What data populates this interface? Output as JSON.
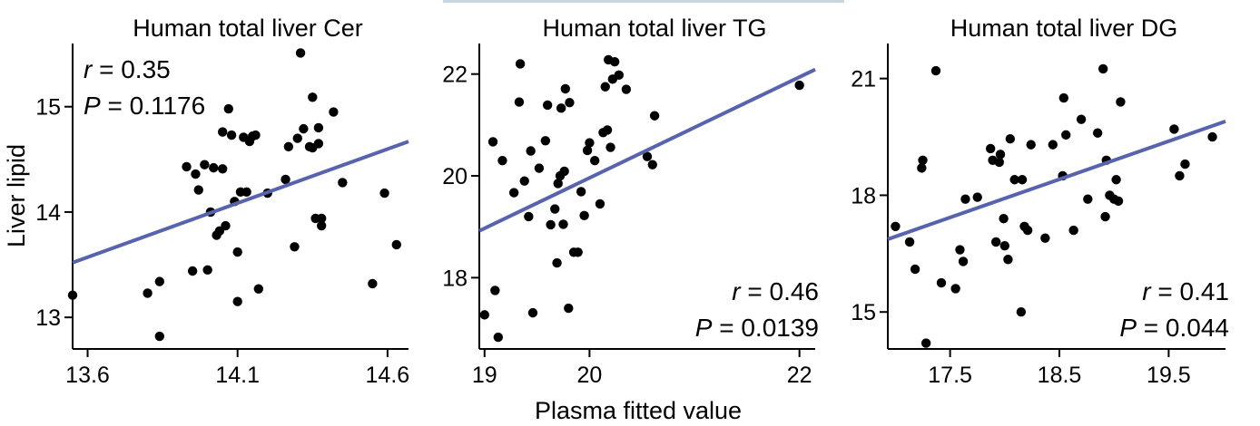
{
  "shared": {
    "ylabel": "Liver lipid",
    "xlabel": "Plasma fitted value",
    "colors": {
      "points": "#000000",
      "fit": "#5863ae",
      "axes": "#000000"
    }
  },
  "chart_data": [
    {
      "type": "scatter",
      "title": "Human total liver Cer",
      "xlim": [
        13.55,
        14.67
      ],
      "ylim": [
        12.7,
        15.6
      ],
      "xticks": [
        13.6,
        14.1,
        14.6
      ],
      "xtick_labels": [
        "13.6",
        "14.1",
        "14.6"
      ],
      "yticks": [
        13,
        14,
        15
      ],
      "ytick_labels": [
        "13",
        "14",
        "15"
      ],
      "r_label": "r",
      "r_value": " = 0.35",
      "p_label": "P",
      "p_value": " = 0.1176",
      "stats_position": "top-left",
      "fit": {
        "x": [
          13.55,
          14.67
        ],
        "y": [
          13.52,
          14.67
        ]
      },
      "points": [
        [
          13.55,
          13.21
        ],
        [
          13.8,
          13.23
        ],
        [
          13.84,
          13.34
        ],
        [
          13.84,
          12.82
        ],
        [
          13.93,
          14.43
        ],
        [
          13.95,
          13.44
        ],
        [
          13.96,
          14.36
        ],
        [
          13.97,
          14.21
        ],
        [
          13.99,
          14.45
        ],
        [
          14.0,
          13.45
        ],
        [
          14.01,
          14.0
        ],
        [
          14.02,
          14.42
        ],
        [
          14.03,
          13.78
        ],
        [
          14.04,
          13.82
        ],
        [
          14.05,
          14.41
        ],
        [
          14.05,
          14.76
        ],
        [
          14.06,
          13.87
        ],
        [
          14.07,
          14.98
        ],
        [
          14.08,
          14.73
        ],
        [
          14.09,
          14.1
        ],
        [
          14.1,
          13.62
        ],
        [
          14.1,
          13.15
        ],
        [
          14.11,
          14.19
        ],
        [
          14.12,
          14.71
        ],
        [
          14.13,
          14.19
        ],
        [
          14.14,
          14.67
        ],
        [
          14.15,
          14.72
        ],
        [
          14.16,
          14.73
        ],
        [
          14.17,
          13.27
        ],
        [
          14.2,
          14.18
        ],
        [
          14.26,
          14.31
        ],
        [
          14.27,
          14.62
        ],
        [
          14.29,
          13.67
        ],
        [
          14.3,
          14.7
        ],
        [
          14.31,
          15.51
        ],
        [
          14.32,
          14.79
        ],
        [
          14.34,
          14.62
        ],
        [
          14.35,
          15.09
        ],
        [
          14.35,
          14.61
        ],
        [
          14.36,
          13.94
        ],
        [
          14.37,
          14.65
        ],
        [
          14.37,
          14.8
        ],
        [
          14.38,
          13.87
        ],
        [
          14.38,
          13.94
        ],
        [
          14.42,
          14.95
        ],
        [
          14.45,
          14.28
        ],
        [
          14.55,
          13.32
        ],
        [
          14.59,
          14.18
        ],
        [
          14.63,
          13.69
        ]
      ]
    },
    {
      "type": "scatter",
      "title": "Human total liver TG",
      "xlim": [
        18.95,
        22.15
      ],
      "ylim": [
        16.6,
        22.6
      ],
      "xticks": [
        19,
        20,
        22
      ],
      "xtick_labels": [
        "19",
        "20",
        "22"
      ],
      "yticks": [
        18,
        20,
        22
      ],
      "ytick_labels": [
        "18",
        "20",
        "22"
      ],
      "r_label": "r",
      "r_value": " = 0.46",
      "p_label": "P",
      "p_value": " = 0.0139",
      "stats_position": "bottom-right",
      "fit": {
        "x": [
          18.95,
          22.15
        ],
        "y": [
          18.92,
          22.09
        ]
      },
      "points": [
        [
          19.0,
          17.27
        ],
        [
          19.08,
          20.67
        ],
        [
          19.1,
          17.75
        ],
        [
          19.13,
          16.83
        ],
        [
          19.17,
          20.3
        ],
        [
          19.28,
          19.67
        ],
        [
          19.33,
          21.45
        ],
        [
          19.34,
          22.2
        ],
        [
          19.38,
          19.9
        ],
        [
          19.42,
          19.2
        ],
        [
          19.44,
          20.49
        ],
        [
          19.46,
          17.31
        ],
        [
          19.52,
          20.15
        ],
        [
          19.58,
          20.69
        ],
        [
          19.6,
          21.39
        ],
        [
          19.63,
          19.04
        ],
        [
          19.67,
          19.35
        ],
        [
          19.69,
          18.29
        ],
        [
          19.7,
          19.85
        ],
        [
          19.72,
          20.0
        ],
        [
          19.73,
          21.33
        ],
        [
          19.75,
          19.05
        ],
        [
          19.76,
          20.09
        ],
        [
          19.77,
          21.71
        ],
        [
          19.8,
          17.4
        ],
        [
          19.81,
          21.44
        ],
        [
          19.85,
          18.5
        ],
        [
          19.89,
          18.5
        ],
        [
          19.92,
          19.69
        ],
        [
          19.95,
          19.22
        ],
        [
          19.98,
          20.5
        ],
        [
          20.0,
          20.65
        ],
        [
          20.05,
          20.3
        ],
        [
          20.1,
          19.45
        ],
        [
          20.13,
          20.85
        ],
        [
          20.15,
          21.75
        ],
        [
          20.17,
          20.9
        ],
        [
          20.18,
          22.28
        ],
        [
          20.2,
          20.56
        ],
        [
          20.22,
          21.9
        ],
        [
          20.24,
          22.24
        ],
        [
          20.28,
          21.98
        ],
        [
          20.35,
          21.7
        ],
        [
          20.55,
          20.38
        ],
        [
          20.6,
          20.22
        ],
        [
          20.62,
          21.18
        ],
        [
          22.0,
          21.78
        ]
      ]
    },
    {
      "type": "scatter",
      "title": "Human total liver DG",
      "xlim": [
        16.93,
        20.02
      ],
      "ylim": [
        14.05,
        21.9
      ],
      "xticks": [
        17.5,
        18.5,
        19.5
      ],
      "xtick_labels": [
        "17.5",
        "18.5",
        "19.5"
      ],
      "yticks": [
        15,
        18,
        21
      ],
      "ytick_labels": [
        "15",
        "18",
        "21"
      ],
      "r_label": "r",
      "r_value": " = 0.41",
      "p_label": "P",
      "p_value": " = 0.044",
      "stats_position": "bottom-right",
      "fit": {
        "x": [
          16.93,
          20.02
        ],
        "y": [
          16.87,
          19.9
        ]
      },
      "points": [
        [
          17.0,
          17.2
        ],
        [
          17.13,
          16.8
        ],
        [
          17.18,
          16.1
        ],
        [
          17.24,
          18.7
        ],
        [
          17.25,
          18.9
        ],
        [
          17.28,
          14.2
        ],
        [
          17.37,
          21.2
        ],
        [
          17.42,
          15.75
        ],
        [
          17.55,
          15.6
        ],
        [
          17.59,
          16.6
        ],
        [
          17.62,
          16.3
        ],
        [
          17.64,
          17.9
        ],
        [
          17.75,
          17.95
        ],
        [
          17.87,
          19.2
        ],
        [
          17.89,
          18.9
        ],
        [
          17.92,
          16.8
        ],
        [
          17.95,
          18.85
        ],
        [
          17.96,
          19.05
        ],
        [
          17.99,
          17.4
        ],
        [
          18.0,
          16.7
        ],
        [
          18.03,
          16.35
        ],
        [
          18.05,
          19.45
        ],
        [
          18.09,
          18.4
        ],
        [
          18.15,
          15.0
        ],
        [
          18.16,
          18.4
        ],
        [
          18.18,
          17.2
        ],
        [
          18.21,
          17.1
        ],
        [
          18.24,
          19.3
        ],
        [
          18.37,
          16.9
        ],
        [
          18.44,
          19.3
        ],
        [
          18.53,
          18.5
        ],
        [
          18.54,
          20.5
        ],
        [
          18.56,
          19.55
        ],
        [
          18.63,
          17.1
        ],
        [
          18.7,
          19.95
        ],
        [
          18.76,
          17.9
        ],
        [
          18.85,
          19.6
        ],
        [
          18.9,
          21.25
        ],
        [
          18.92,
          17.45
        ],
        [
          18.93,
          18.9
        ],
        [
          18.96,
          18.0
        ],
        [
          19.0,
          17.9
        ],
        [
          19.02,
          18.4
        ],
        [
          19.04,
          17.85
        ],
        [
          19.06,
          20.4
        ],
        [
          19.55,
          19.7
        ],
        [
          19.6,
          18.5
        ],
        [
          19.65,
          18.8
        ],
        [
          19.9,
          19.5
        ]
      ]
    }
  ]
}
